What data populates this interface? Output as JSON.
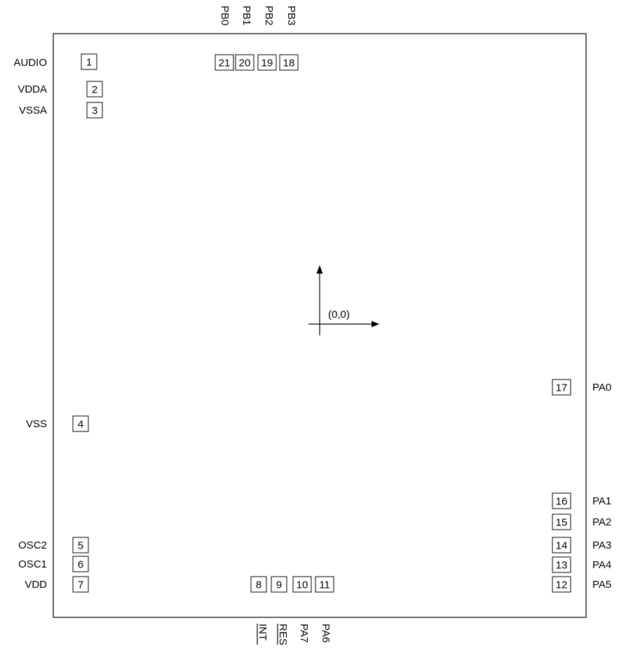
{
  "origin_label": "(0,0)",
  "pads": [
    {
      "id": "1",
      "label": "AUDIO"
    },
    {
      "id": "2",
      "label": "VDDA"
    },
    {
      "id": "3",
      "label": "VSSA"
    },
    {
      "id": "4",
      "label": "VSS"
    },
    {
      "id": "5",
      "label": "OSC2"
    },
    {
      "id": "6",
      "label": "OSC1"
    },
    {
      "id": "7",
      "label": "VDD"
    },
    {
      "id": "8",
      "label": "INT"
    },
    {
      "id": "9",
      "label": "RES"
    },
    {
      "id": "10",
      "label": "PA7"
    },
    {
      "id": "11",
      "label": "PA6"
    },
    {
      "id": "12",
      "label": "PA5"
    },
    {
      "id": "13",
      "label": "PA4"
    },
    {
      "id": "14",
      "label": "PA3"
    },
    {
      "id": "15",
      "label": "PA2"
    },
    {
      "id": "16",
      "label": "PA1"
    },
    {
      "id": "17",
      "label": "PA0"
    },
    {
      "id": "18",
      "label": "PB3"
    },
    {
      "id": "19",
      "label": "PB2"
    },
    {
      "id": "20",
      "label": "PB1"
    },
    {
      "id": "21",
      "label": "PB0"
    }
  ]
}
